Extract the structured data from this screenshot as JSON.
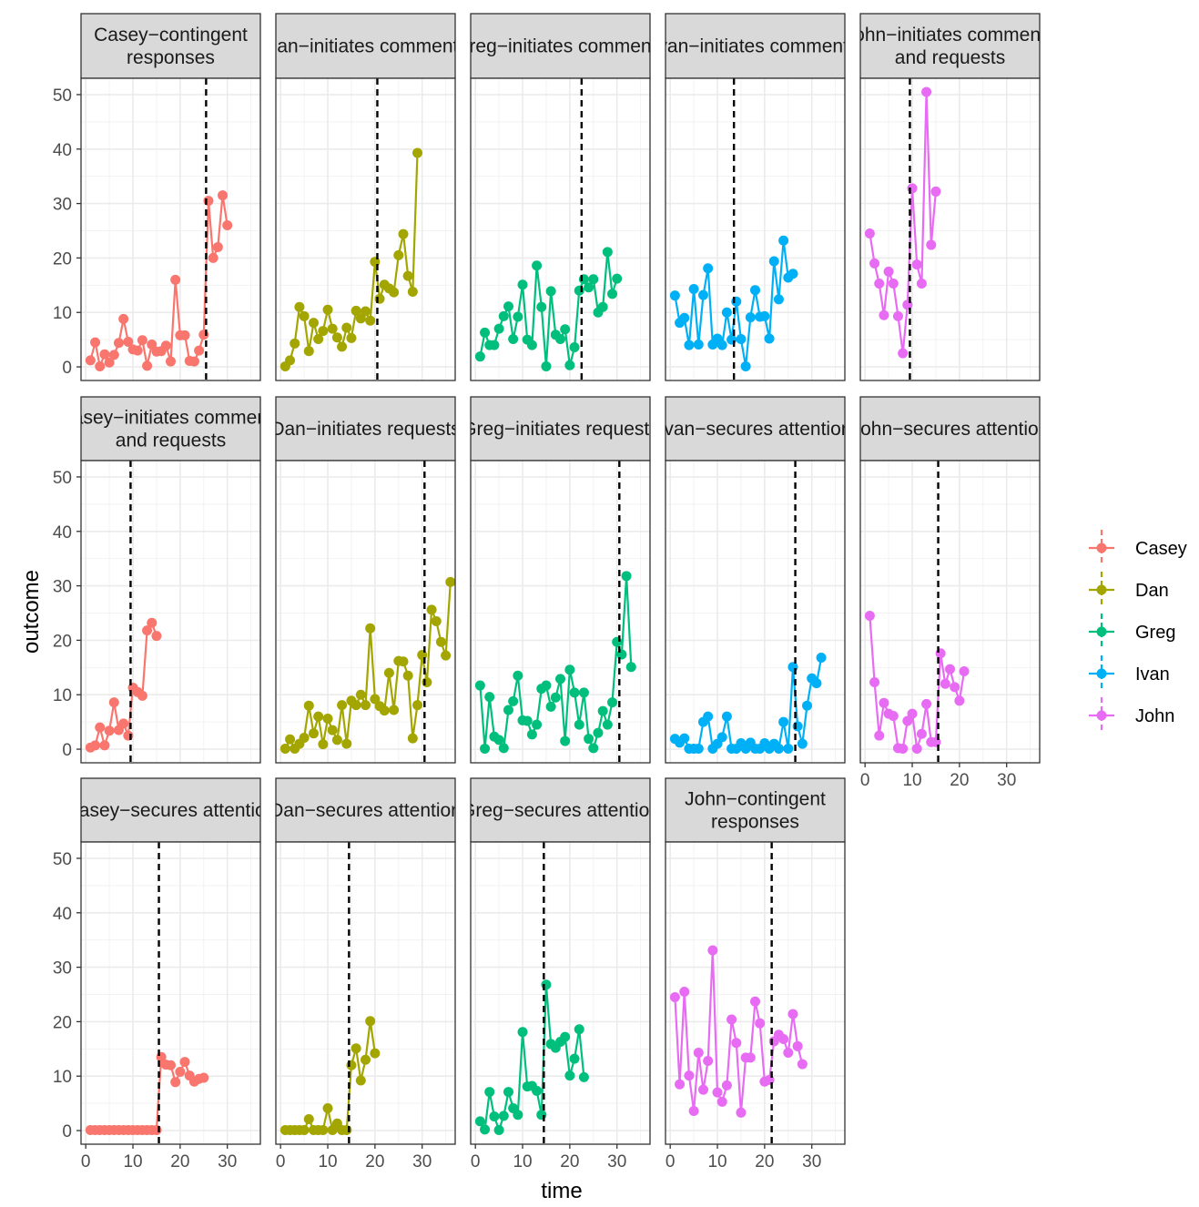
{
  "chart_data": {
    "type": "line",
    "xlabel": "time",
    "ylabel": "outcome",
    "xlim": [
      -1,
      37
    ],
    "ylim": [
      -2.5,
      53
    ],
    "x_ticks": [
      0,
      10,
      20,
      30
    ],
    "y_ticks": [
      0,
      10,
      20,
      30,
      40,
      50
    ],
    "x_tick_labels": [
      "0",
      "10",
      "20",
      "30"
    ],
    "y_tick_labels": [
      "0",
      "10",
      "20",
      "30",
      "40",
      "50"
    ],
    "grid": true,
    "legend": {
      "position": "right",
      "entries": [
        {
          "name": "Casey",
          "color": "#F8766D"
        },
        {
          "name": "Dan",
          "color": "#A3A500"
        },
        {
          "name": "Greg",
          "color": "#00BF7D"
        },
        {
          "name": "Ivan",
          "color": "#00B0F6"
        },
        {
          "name": "John",
          "color": "#E76BF3"
        }
      ]
    },
    "panels": [
      {
        "title": [
          "Casey−contingent",
          "responses"
        ],
        "series": "Casey",
        "phase_change": 25.5,
        "y": [
          1.2,
          4.5,
          0.1,
          2.3,
          0.8,
          2.2,
          4.4,
          8.8,
          4.6,
          3.2,
          3.0,
          4.9,
          0.2,
          4.1,
          2.8,
          2.9,
          3.9,
          1.0,
          16.0,
          5.8,
          5.8,
          1.1,
          1.0,
          3.0,
          5.9,
          30.5,
          20.0,
          22.0,
          31.5,
          26.0
        ]
      },
      {
        "title": [
          "Dan−initiates comments"
        ],
        "series": "Dan",
        "phase_change": 20.5,
        "y": [
          0.1,
          1.2,
          4.3,
          11.0,
          9.3,
          2.9,
          8.1,
          5.1,
          6.6,
          10.5,
          7.0,
          5.4,
          3.7,
          7.2,
          5.3,
          10.3,
          8.9,
          10.2,
          8.5,
          19.3,
          12.5,
          15.1,
          14.4,
          13.7,
          20.5,
          24.4,
          16.7,
          13.8,
          39.3
        ]
      },
      {
        "title": [
          "Greg−initiates comments"
        ],
        "series": "Greg",
        "phase_change": 22.5,
        "y": [
          1.9,
          6.3,
          4.0,
          4.0,
          7.0,
          9.3,
          11.1,
          5.1,
          9.2,
          15.1,
          5.0,
          4.0,
          18.6,
          11.0,
          0.1,
          13.9,
          5.9,
          5.1,
          6.9,
          0.3,
          3.6,
          14.0,
          16.1,
          14.6,
          16.1,
          10.0,
          11.0,
          21.1,
          13.4,
          16.2
        ]
      },
      {
        "title": [
          "Ivan−initiates comments"
        ],
        "series": "Ivan",
        "phase_change": 13.5,
        "y": [
          13.1,
          8.1,
          9.0,
          4.0,
          14.3,
          4.1,
          13.2,
          18.1,
          4.1,
          5.2,
          4.0,
          10.0,
          5.0,
          12.0,
          5.1,
          0.1,
          9.1,
          14.1,
          9.2,
          9.3,
          5.2,
          19.4,
          12.4,
          23.2,
          16.4,
          17.1
        ]
      },
      {
        "title": [
          "John−initiates comments",
          "and requests"
        ],
        "series": "John",
        "phase_change": 9.5,
        "y": [
          24.5,
          19.0,
          15.3,
          9.5,
          17.5,
          15.3,
          9.3,
          2.5,
          11.4,
          32.8,
          18.8,
          15.3,
          50.5,
          22.4,
          32.2
        ]
      },
      {
        "title": [
          "Casey−initiates comments",
          "and requests"
        ],
        "series": "Casey",
        "phase_change": 9.5,
        "y": [
          0.3,
          0.7,
          4.0,
          0.7,
          3.4,
          8.6,
          3.5,
          4.7,
          2.5,
          11.3,
          10.5,
          9.8,
          21.8,
          23.2,
          20.8
        ]
      },
      {
        "title": [
          "Dan−initiates requests"
        ],
        "series": "Dan",
        "phase_change": 30.5,
        "y": [
          0.1,
          1.8,
          0.1,
          1.0,
          2.1,
          8.0,
          2.9,
          6.0,
          0.9,
          5.6,
          3.5,
          1.7,
          8.1,
          1.0,
          8.9,
          8.1,
          10.0,
          8.1,
          22.2,
          9.2,
          7.9,
          7.1,
          14.0,
          7.2,
          16.2,
          16.1,
          13.5,
          2.0,
          8.1,
          17.3,
          12.3,
          25.6,
          23.5,
          19.7,
          17.2,
          30.7
        ]
      },
      {
        "title": [
          "Greg−initiates requests"
        ],
        "series": "Greg",
        "phase_change": 30.5,
        "y": [
          11.7,
          0.1,
          9.6,
          2.3,
          1.7,
          0.2,
          7.2,
          8.8,
          13.5,
          5.3,
          5.2,
          2.7,
          4.5,
          11.1,
          11.7,
          7.8,
          9.5,
          12.9,
          1.5,
          14.6,
          10.4,
          4.5,
          10.4,
          1.9,
          0.2,
          3.0,
          7.0,
          4.5,
          8.6,
          19.7,
          17.4,
          31.8,
          15.1
        ]
      },
      {
        "title": [
          "Ivan−secures attention"
        ],
        "series": "Ivan",
        "phase_change": 26.5,
        "y": [
          1.9,
          1.2,
          2.0,
          0.1,
          0.1,
          0.1,
          5.0,
          6.0,
          0.1,
          1.0,
          2.2,
          6.0,
          0.1,
          0.1,
          1.1,
          0.1,
          1.2,
          0.1,
          0.1,
          1.1,
          0.1,
          1.0,
          0.1,
          5.0,
          0.1,
          15.1,
          4.2,
          1.0,
          8.0,
          13.0,
          12.1,
          16.8
        ]
      },
      {
        "title": [
          "John−secures attention"
        ],
        "series": "John",
        "phase_change": 15.5,
        "y": [
          24.5,
          12.3,
          2.5,
          8.5,
          6.5,
          6.1,
          0.2,
          0.1,
          5.2,
          6.5,
          0.1,
          2.8,
          8.3,
          1.3,
          1.3,
          17.6,
          12.0,
          14.7,
          11.4,
          8.9,
          14.3
        ]
      },
      {
        "title": [
          "Casey−secures attention"
        ],
        "series": "Casey",
        "phase_change": 15.5,
        "y": [
          0.1,
          0.1,
          0.1,
          0.1,
          0.1,
          0.1,
          0.1,
          0.1,
          0.1,
          0.1,
          0.1,
          0.1,
          0.1,
          0.1,
          0.1,
          13.5,
          12.1,
          12.0,
          8.9,
          10.8,
          12.6,
          10.1,
          9.0,
          9.5,
          9.7
        ]
      },
      {
        "title": [
          "Dan−secures attention"
        ],
        "series": "Dan",
        "phase_change": 14.5,
        "y": [
          0.1,
          0.1,
          0.1,
          0.1,
          0.1,
          2.1,
          0.1,
          0.1,
          0.1,
          4.1,
          0.1,
          1.3,
          0.1,
          0.1,
          12.0,
          15.1,
          9.2,
          13.0,
          20.1,
          14.2
        ]
      },
      {
        "title": [
          "Greg−secures attention"
        ],
        "series": "Greg",
        "phase_change": 14.5,
        "y": [
          1.7,
          0.2,
          7.1,
          2.6,
          0.1,
          2.7,
          7.1,
          4.1,
          2.9,
          18.1,
          8.1,
          8.2,
          7.3,
          2.9,
          26.8,
          15.9,
          15.2,
          16.3,
          17.2,
          10.1,
          13.2,
          18.6,
          9.8
        ]
      },
      {
        "title": [
          "John−contingent",
          "responses"
        ],
        "series": "John",
        "phase_change": 21.5,
        "y": [
          24.5,
          8.5,
          25.5,
          10.1,
          3.6,
          14.3,
          7.5,
          12.8,
          33.1,
          7.0,
          5.3,
          8.3,
          20.4,
          16.1,
          3.3,
          13.4,
          13.4,
          23.7,
          19.7,
          9.0,
          9.3,
          16.4,
          17.6,
          16.8,
          14.3,
          21.4,
          15.5,
          12.2
        ]
      }
    ]
  }
}
